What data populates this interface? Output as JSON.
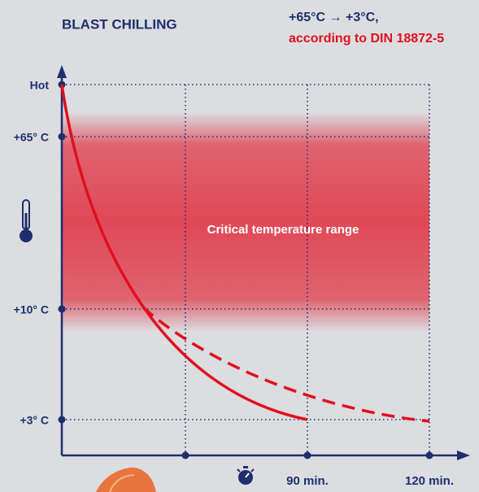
{
  "header": {
    "title": "BLAST CHILLING",
    "formula": "+65°C → +3°C,",
    "standard": "according to DIN 18872-5"
  },
  "diagram": {
    "y_labels": [
      "Hot",
      "+65° C",
      "+10° C",
      "+3° C"
    ],
    "x_labels": [
      "90 min.",
      "120 min."
    ],
    "band_label": "Critical temperature range"
  }
}
